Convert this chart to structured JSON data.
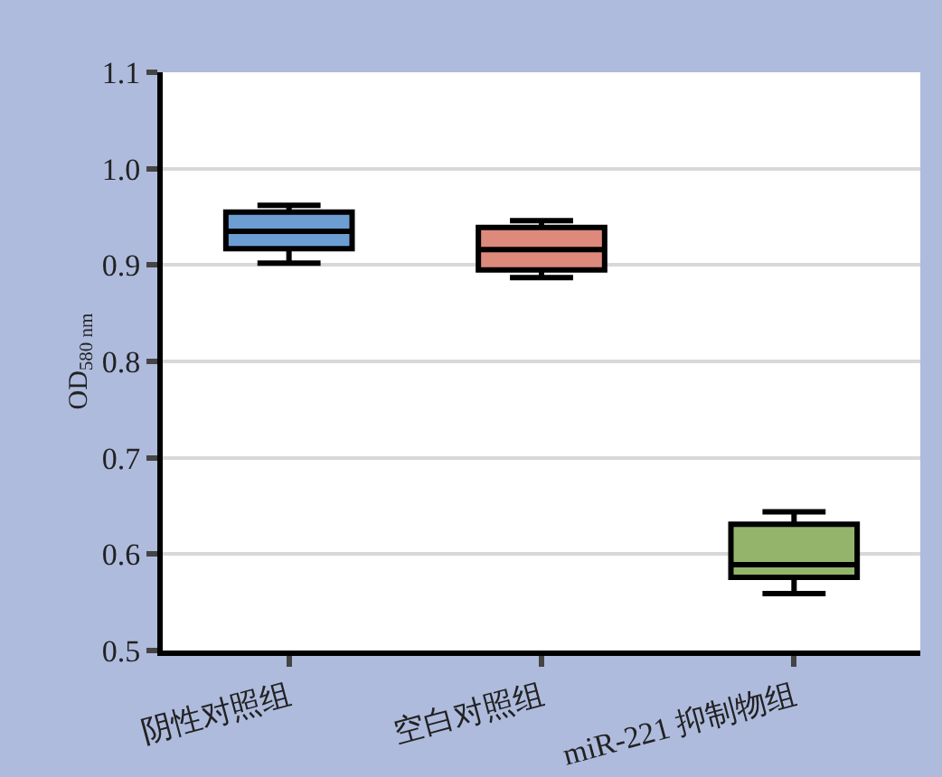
{
  "chart_data": {
    "type": "box",
    "ylabel": "OD$_{580 nm}$",
    "categories": [
      "阴性对照组",
      "空白对照组",
      "miR-221 抑制物组"
    ],
    "colors": [
      "#6d9ed3",
      "#dd8a7d",
      "#94b46c"
    ],
    "boxes": [
      {
        "low": 0.902,
        "q1": 0.917,
        "median": 0.935,
        "q3": 0.955,
        "high": 0.962
      },
      {
        "low": 0.887,
        "q1": 0.895,
        "median": 0.916,
        "q3": 0.939,
        "high": 0.946
      },
      {
        "low": 0.559,
        "q1": 0.576,
        "median": 0.589,
        "q3": 0.631,
        "high": 0.644
      }
    ],
    "ylim": [
      0.5,
      1.1
    ],
    "yticks": [
      {
        "value": 0.5,
        "label": "0.5"
      },
      {
        "value": 0.6,
        "label": "0.6"
      },
      {
        "value": 0.7,
        "label": "0.7"
      },
      {
        "value": 0.8,
        "label": "0.8"
      },
      {
        "value": 0.9,
        "label": "0.9"
      },
      {
        "value": 1.0,
        "label": "1.0"
      },
      {
        "value": 1.1,
        "label": "1.1"
      }
    ],
    "grid": "y",
    "legend": false
  }
}
